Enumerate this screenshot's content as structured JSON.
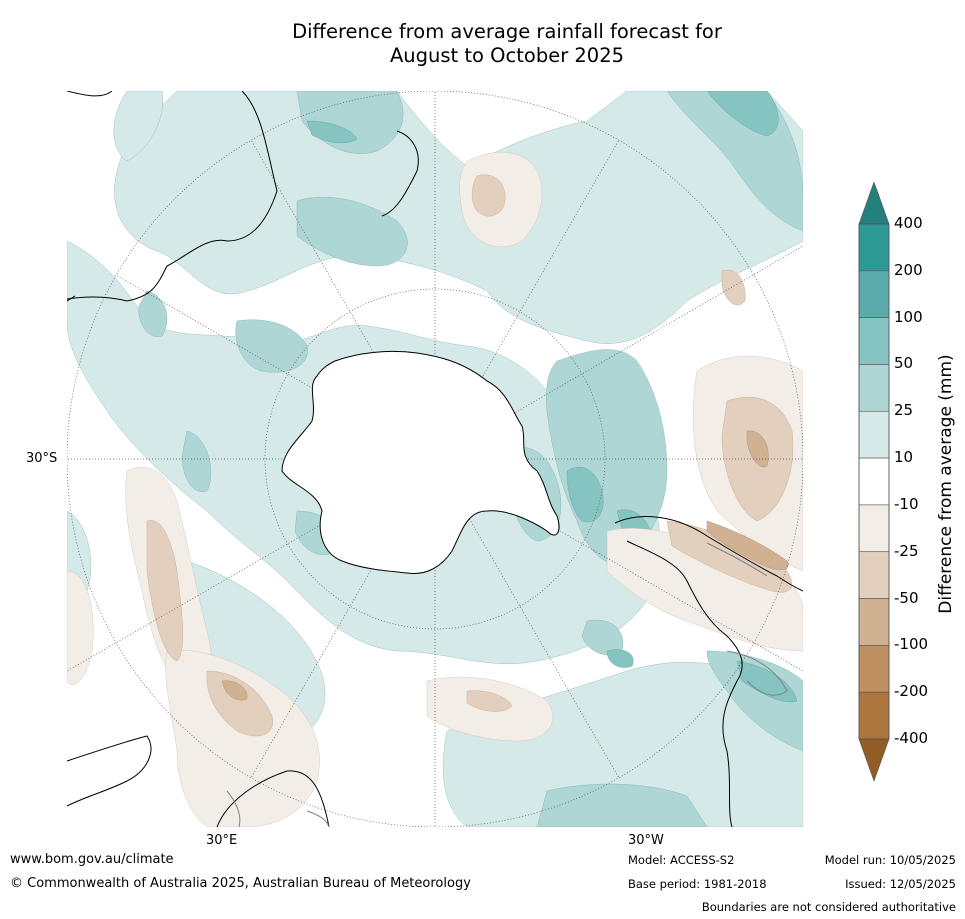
{
  "header": {
    "title_line1": "Difference from average rainfall forecast for",
    "title_line2": "August to October 2025"
  },
  "map": {
    "projection": "south-polar-stereographic",
    "lat_label": "30°S",
    "lon_labels": [
      "30°E",
      "30°W"
    ],
    "land_outline_color": "#000000",
    "boundary_color": "#808080",
    "gridline_color": "#555555"
  },
  "legend": {
    "title": "Difference from average (mm)",
    "ticks": [
      "400",
      "200",
      "100",
      "50",
      "25",
      "10",
      "-10",
      "-25",
      "-50",
      "-100",
      "-200",
      "-400"
    ],
    "bins": [
      {
        "range": ">400",
        "color": "#257f7c"
      },
      {
        "range": "200 to 400",
        "color": "#2e9a96"
      },
      {
        "range": "100 to 200",
        "color": "#5aabaa"
      },
      {
        "range": "50 to 100",
        "color": "#86c4c2"
      },
      {
        "range": "25 to 50",
        "color": "#aed6d4"
      },
      {
        "range": "10 to 25",
        "color": "#d5e9e8"
      },
      {
        "range": "-10 to 10",
        "color": "#ffffff"
      },
      {
        "range": "-25 to -10",
        "color": "#f2ede7"
      },
      {
        "range": "-50 to -25",
        "color": "#e3cfbe"
      },
      {
        "range": "-100 to -50",
        "color": "#d0b191"
      },
      {
        "range": "-200 to -100",
        "color": "#bf9061"
      },
      {
        "range": "-400 to -200",
        "color": "#ae763f"
      },
      {
        "range": "<-400",
        "color": "#925c25"
      }
    ]
  },
  "footer": {
    "url": "www.bom.gov.au/climate",
    "copyright": "© Commonwealth of Australia 2025, Australian Bureau of Meteorology",
    "model": "Model: ACCESS-S2",
    "base_period": "Base period: 1981-2018",
    "model_run": "Model run: 10/05/2025",
    "issued": "Issued: 12/05/2025",
    "disclaimer": "Boundaries are not considered authoritative"
  }
}
